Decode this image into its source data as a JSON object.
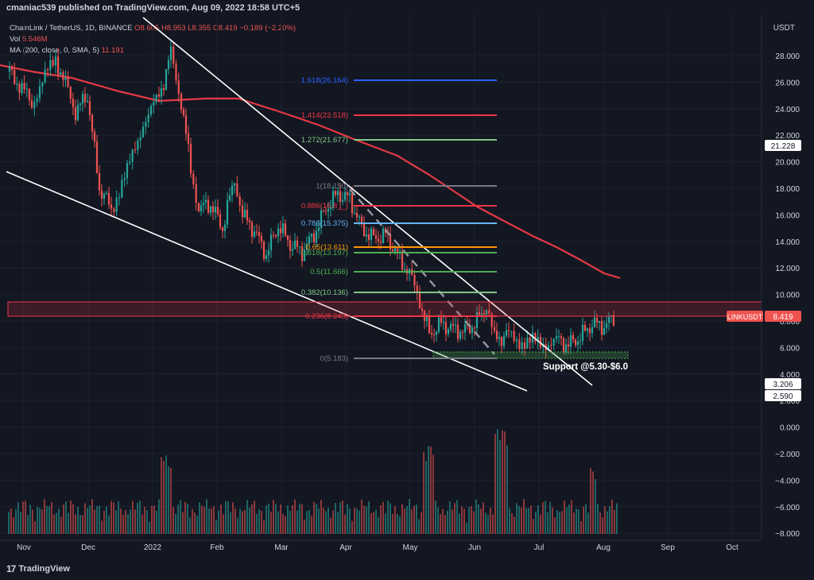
{
  "header": {
    "publisher_line": "cmaniac539 published on TradingView.com, Aug 09, 2022 18:58 UTC+5"
  },
  "legend": {
    "symbol": "ChainLink / TetherUS, 1D, BINANCE",
    "ohlc": "O8.605  H8.953  L8.355  C8.419  −0.189 (−2.20%)",
    "vol_label": "Vol",
    "vol_value": "5.546M",
    "ma_label": "MA (200, close, 0, SMA, 5)",
    "ma_value": "11.191"
  },
  "price_axis": {
    "currency": "USDT",
    "ticks": [
      "28.000",
      "26.000",
      "24.000",
      "22.000",
      "20.000",
      "18.000",
      "16.000",
      "14.000",
      "12.000",
      "10.000",
      "8.000",
      "6.000",
      "4.000",
      "2.000",
      "0.000",
      "−2.000",
      "−4.000",
      "−6.000",
      "−8.000"
    ],
    "badges": [
      {
        "label": "21.228",
        "color": "#ffffff",
        "text_color": "#131722"
      },
      {
        "label": "8.419",
        "color": "#ef5350",
        "text_color": "#ffffff",
        "tag": "LINKUSDT"
      },
      {
        "label": "3.206",
        "color": "#ffffff",
        "text_color": "#131722"
      },
      {
        "label": "2.590",
        "color": "#ffffff",
        "text_color": "#131722"
      }
    ]
  },
  "time_axis": {
    "labels": [
      "Nov",
      "Dec",
      "2022",
      "Feb",
      "Mar",
      "Apr",
      "May",
      "Jun",
      "Jul",
      "Aug",
      "Sep",
      "Oct"
    ]
  },
  "fib_levels": [
    {
      "label": "1.618(26.164)",
      "color": "#2962ff"
    },
    {
      "label": "1.414(23.518)",
      "color": "#f23645"
    },
    {
      "label": "1.272(21.677)",
      "color": "#81c784"
    },
    {
      "label": "1(18.150)",
      "color": "#787b86"
    },
    {
      "label": "0.886(16.8__)",
      "color": "#f23645"
    },
    {
      "label": "0.786(15.375)",
      "color": "#64b5f6"
    },
    {
      "label": "0.65(13.611)",
      "color": "#ff9800"
    },
    {
      "label": "0.618(13.197)",
      "color": "#4caf50"
    },
    {
      "label": "0.5(11.666)",
      "color": "#4caf50"
    },
    {
      "label": "0.382(10.136)",
      "color": "#81c784"
    },
    {
      "label": "0.236(8.243)",
      "color": "#f23645"
    },
    {
      "label": "0(5.183)",
      "color": "#787b86"
    }
  ],
  "annotations": {
    "support": "Support @5.30-$6.0"
  },
  "colors": {
    "bull": "#26a69a",
    "bear": "#ef5350",
    "ma": "#e53945",
    "bg": "#131722"
  },
  "branding": {
    "logo_text": "TradingView"
  }
}
